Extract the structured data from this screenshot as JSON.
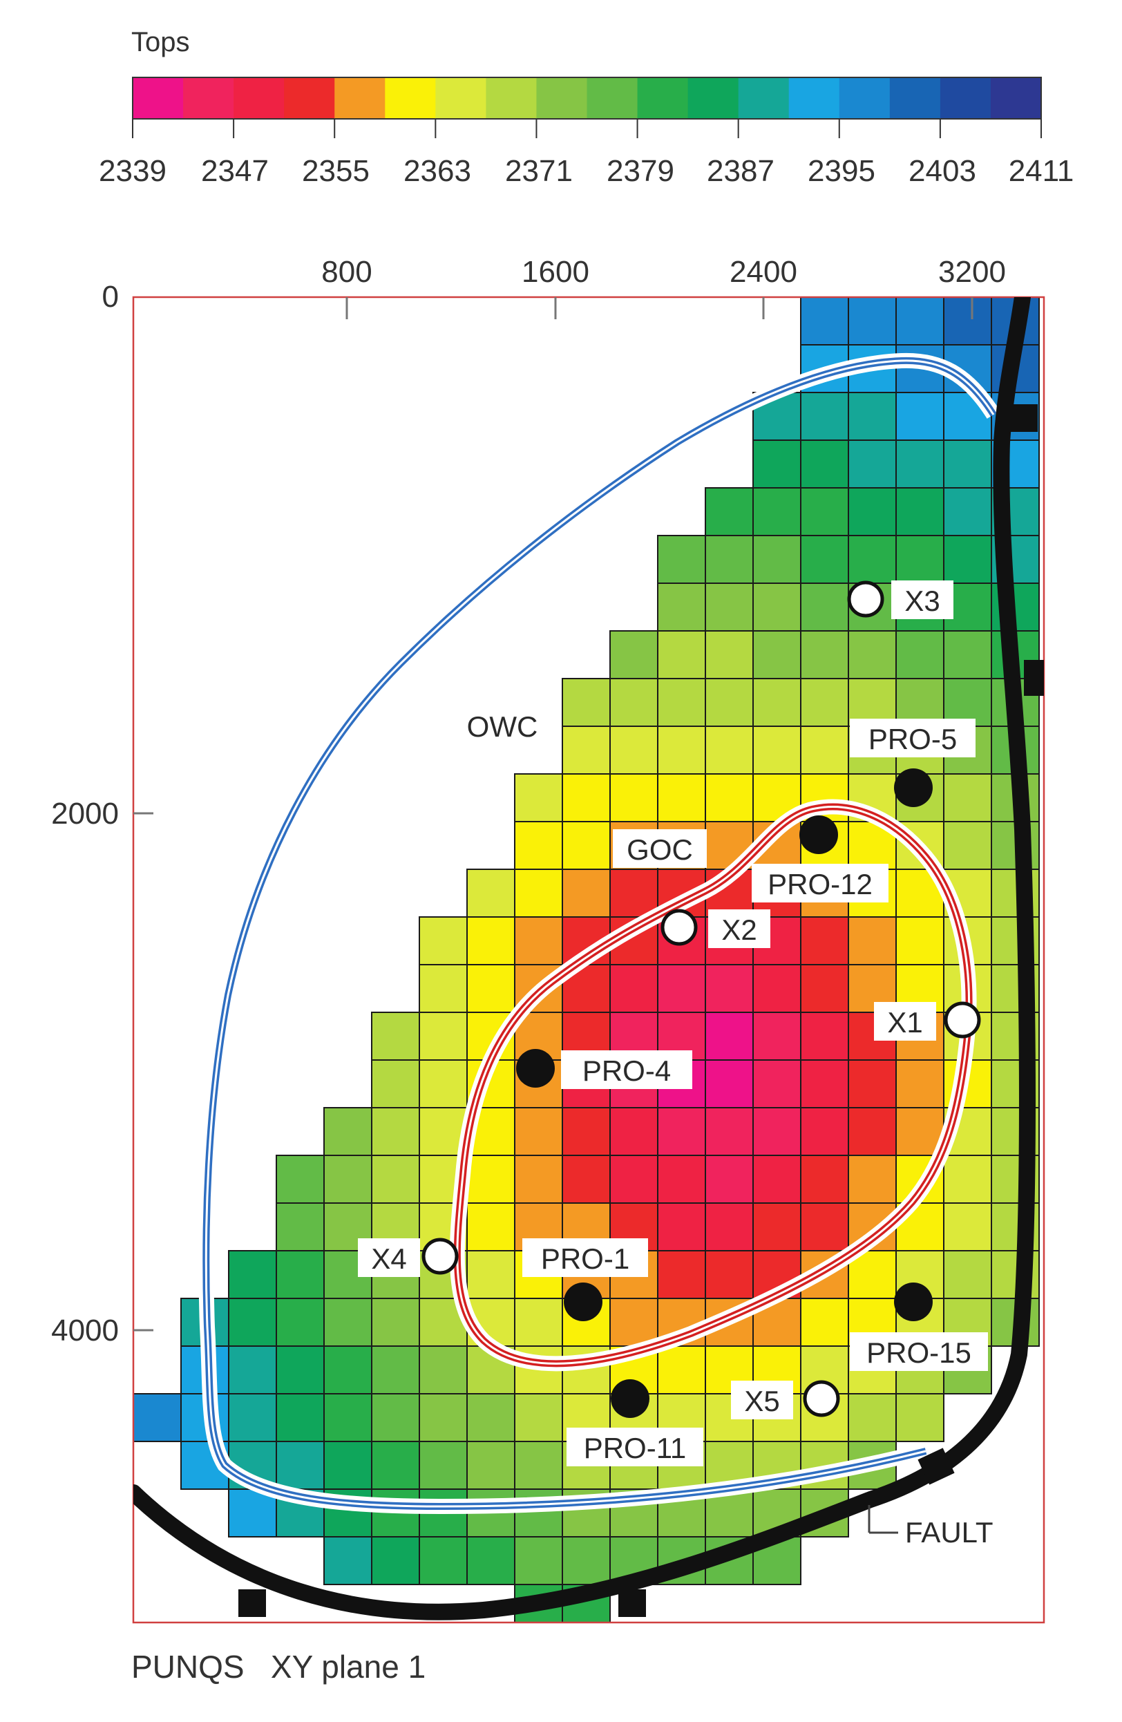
{
  "colorbar": {
    "title": "Tops",
    "ticks": [
      "2339",
      "2347",
      "2355",
      "2363",
      "2371",
      "2379",
      "2387",
      "2395",
      "2403",
      "2411"
    ],
    "colors": [
      "#ee1289",
      "#f0235d",
      "#ef2244",
      "#ec2a2b",
      "#f49a24",
      "#faf107",
      "#dce93a",
      "#b4d941",
      "#86c545",
      "#62bb47",
      "#28ae4a",
      "#0fa65b",
      "#15a797",
      "#19a5e2",
      "#1a88d0",
      "#1865b4",
      "#1f4aa0",
      "#2d3892"
    ]
  },
  "map": {
    "x_ticks": [
      "800",
      "1600",
      "2400",
      "3200"
    ],
    "y_ticks": [
      "0",
      "2000",
      "4000"
    ],
    "footer": "PUNQS   XY plane 1",
    "contour_labels": {
      "owc": "OWC",
      "goc": "GOC",
      "fault": "FAULT"
    },
    "wells": [
      {
        "name": "X3",
        "type": "observation"
      },
      {
        "name": "PRO-5",
        "type": "producer"
      },
      {
        "name": "PRO-12",
        "type": "producer"
      },
      {
        "name": "X2",
        "type": "observation"
      },
      {
        "name": "X1",
        "type": "observation"
      },
      {
        "name": "PRO-4",
        "type": "producer"
      },
      {
        "name": "X4",
        "type": "observation"
      },
      {
        "name": "PRO-1",
        "type": "producer"
      },
      {
        "name": "PRO-15",
        "type": "producer"
      },
      {
        "name": "X5",
        "type": "observation"
      },
      {
        "name": "PRO-11",
        "type": "producer"
      }
    ]
  }
}
